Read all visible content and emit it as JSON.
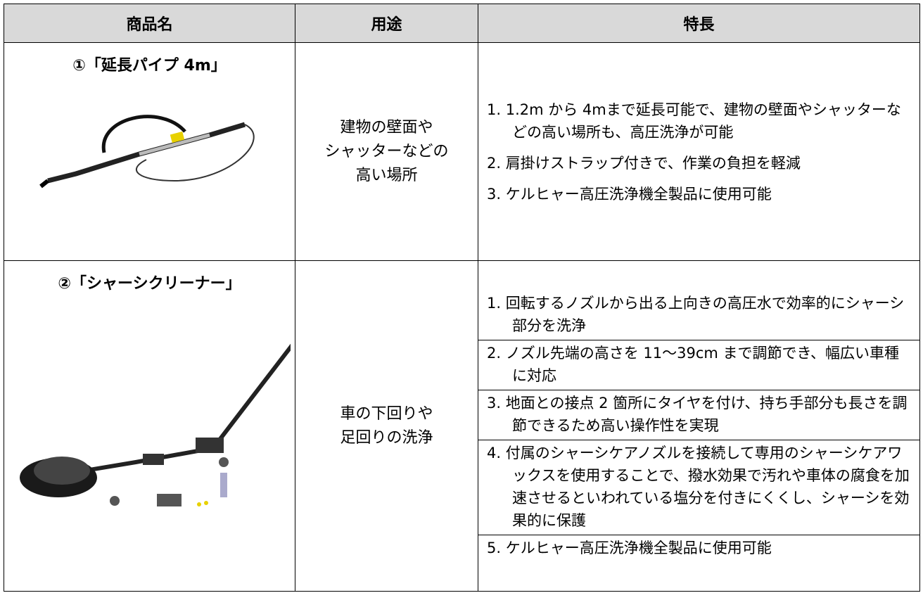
{
  "table": {
    "header": [
      "商品名",
      "用途",
      "特長"
    ],
    "rows": [
      {
        "name": "①「延長パイプ 4m」",
        "use": [
          "建物の壁面や",
          "シャッターなどの",
          "高い場所"
        ],
        "features": [
          "1. 1.2m から 4mまで延長可能で、建物の壁面やシャッターなどの高い場所も、高圧洗浄が可能",
          "2. 肩掛けストラップ付きで、作業の負担を軽減",
          "3. ケルヒャー高圧洗浄機全製品に使用可能"
        ]
      },
      {
        "name": "②「シャーシクリーナー」",
        "use": [
          "車の下回りや",
          "足回りの洗浄"
        ],
        "features": [
          "1. 回転するノズルから出る上向きの高圧水で効率的にシャーシ部分を洗浄",
          "2. ノズル先端の高さを 11～39cm まで調節でき、幅広い車種に対応",
          "3. 地面との接点 2 箇所にタイヤを付け、持ち手部分も長さを調節できるため高い操作性を実現",
          "4. 付属のシャーシケアノズルを接続して専用のシャーシケアワックスを使用することで、撥水効果で汚れや車体の腐食を加速させるといわれている塩分を付きにくくし、シャーシを効果的に保護",
          "5. ケルヒャー高圧洗浄機全製品に使用可能"
        ]
      }
    ]
  }
}
